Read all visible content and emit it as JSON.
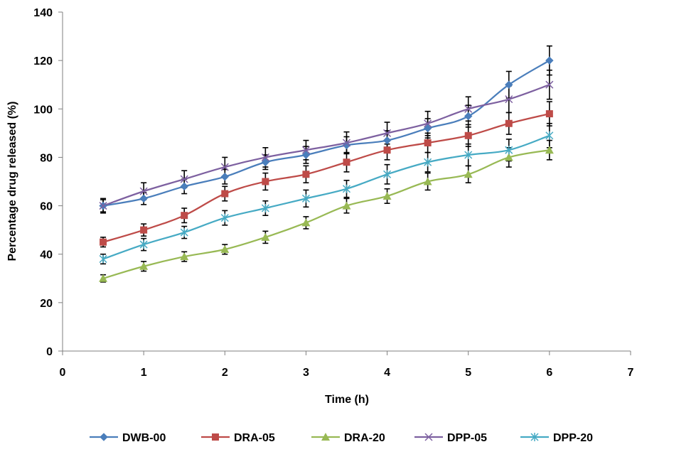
{
  "chart_data": {
    "type": "line",
    "xlabel": "Time (h)",
    "ylabel": "Percentage drug released (%)",
    "xlim": [
      0,
      7
    ],
    "ylim": [
      0,
      140
    ],
    "xticks": [
      0,
      1,
      2,
      3,
      4,
      5,
      6,
      7
    ],
    "yticks": [
      0,
      20,
      40,
      60,
      80,
      100,
      120,
      140
    ],
    "grid": false,
    "legend_position": "bottom",
    "x": [
      0.5,
      1,
      1.5,
      2,
      2.5,
      3,
      3.5,
      4,
      4.5,
      5,
      5.5,
      6
    ],
    "series": [
      {
        "name": "DWB-00",
        "color": "#4a7ebb",
        "marker": "diamond",
        "values": [
          60,
          63,
          68,
          72,
          78,
          81,
          85,
          87,
          92,
          97,
          110,
          120
        ],
        "errors": [
          2.5,
          2.5,
          3,
          3,
          3,
          3.5,
          3.5,
          4,
          4,
          4.5,
          5.5,
          6
        ]
      },
      {
        "name": "DRA-05",
        "color": "#be4b48",
        "marker": "square",
        "values": [
          45,
          50,
          56,
          65,
          70,
          73,
          78,
          83,
          86,
          89,
          94,
          98
        ],
        "errors": [
          2,
          2.5,
          3,
          3,
          3.5,
          3.5,
          4,
          4,
          4,
          4.5,
          4.5,
          5
        ]
      },
      {
        "name": "DRA-20",
        "color": "#98b954",
        "marker": "triangle",
        "values": [
          30,
          35,
          39,
          42,
          47,
          53,
          60,
          64,
          70,
          73,
          80,
          83
        ],
        "errors": [
          1.5,
          2,
          2,
          2,
          2.5,
          2.5,
          3,
          3,
          3.5,
          3.5,
          4,
          4
        ]
      },
      {
        "name": "DPP-05",
        "color": "#7d60a0",
        "marker": "x",
        "values": [
          60,
          66,
          71,
          76,
          80,
          83,
          86,
          90,
          94,
          100,
          104,
          110
        ],
        "errors": [
          3,
          3.5,
          3.5,
          4,
          4,
          4,
          4.5,
          4.5,
          5,
          5,
          5.5,
          6
        ]
      },
      {
        "name": "DPP-20",
        "color": "#46aac4",
        "marker": "star",
        "values": [
          38,
          44,
          49,
          55,
          59,
          63,
          67,
          73,
          78,
          81,
          83,
          89
        ],
        "errors": [
          2,
          2.5,
          2.5,
          3,
          3,
          3.5,
          3.5,
          4,
          4,
          4.5,
          4.5,
          5
        ]
      }
    ]
  }
}
